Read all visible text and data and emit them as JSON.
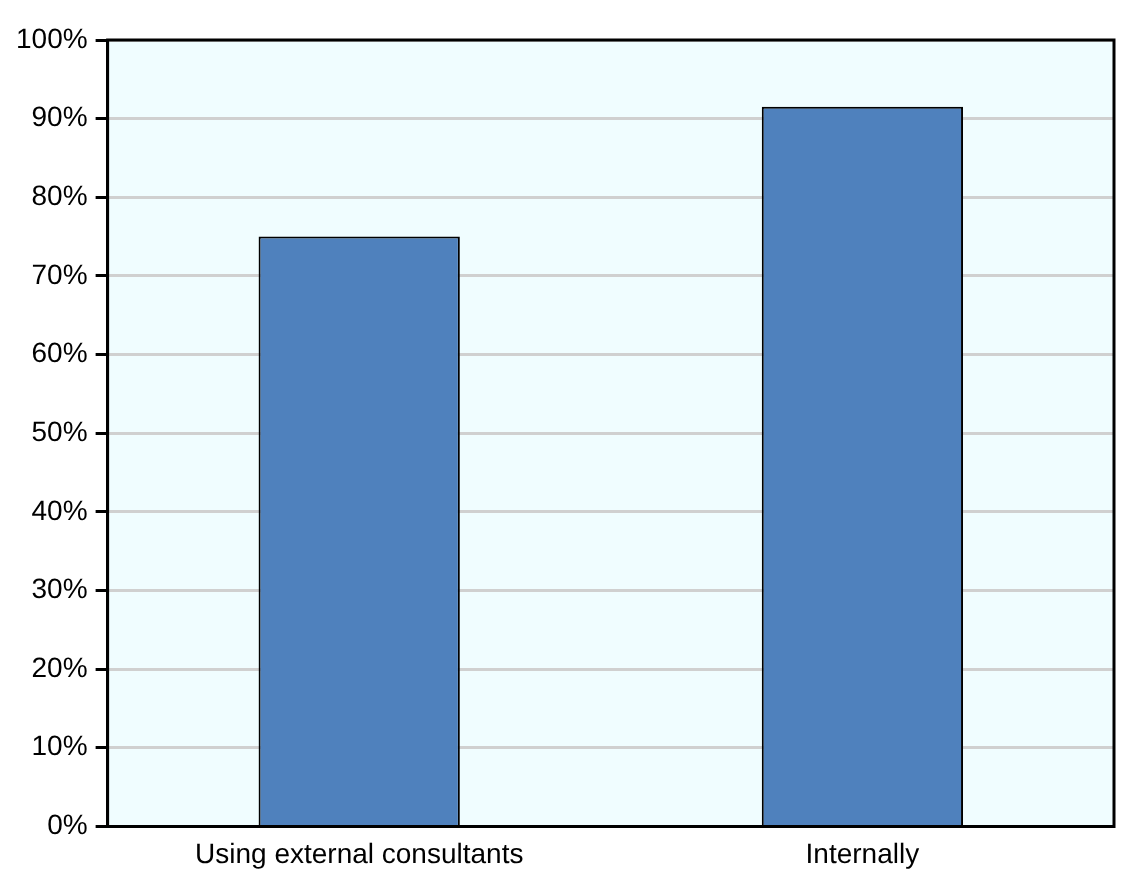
{
  "chart_data": {
    "type": "bar",
    "categories": [
      "Using external consultants",
      "Internally"
    ],
    "values": [
      75,
      91.5
    ],
    "color": "#4f81bd",
    "ylim": [
      0,
      100
    ],
    "yticks": [
      {
        "value": 0,
        "label": "0%"
      },
      {
        "value": 10,
        "label": "10%"
      },
      {
        "value": 20,
        "label": "20%"
      },
      {
        "value": 30,
        "label": "30%"
      },
      {
        "value": 40,
        "label": "40%"
      },
      {
        "value": 50,
        "label": "50%"
      },
      {
        "value": 60,
        "label": "60%"
      },
      {
        "value": 70,
        "label": "70%"
      },
      {
        "value": 80,
        "label": "80%"
      },
      {
        "value": 90,
        "label": "90%"
      },
      {
        "value": 100,
        "label": "100%"
      }
    ],
    "grid": "y",
    "legend": false
  }
}
